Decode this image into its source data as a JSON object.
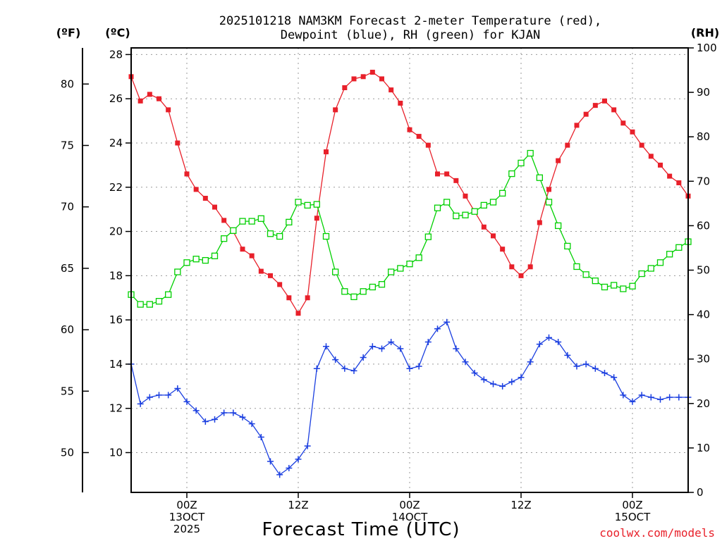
{
  "title_line1": "2025101218 NAM3KM Forecast 2-meter Temperature (red),",
  "title_line2": "Dewpoint (blue), RH (green) for KJAN",
  "units": {
    "f": "(ºF)",
    "c": "(ºC)",
    "rh": "(RH)"
  },
  "credit": "coolwx.com/models",
  "colors": {
    "temp": "#e8202a",
    "dewpoint": "#1b3fe0",
    "rh": "#00d000",
    "grid": "#999999",
    "credit": "#e8202a"
  },
  "chart_data": {
    "type": "line",
    "x": [
      0,
      1,
      2,
      3,
      4,
      5,
      6,
      7,
      8,
      9,
      10,
      11,
      12,
      13,
      14,
      15,
      16,
      17,
      18,
      19,
      20,
      21,
      22,
      23,
      24,
      25,
      26,
      27,
      28,
      29,
      30,
      31,
      32,
      33,
      34,
      35,
      36,
      37,
      38,
      39,
      40,
      41,
      42,
      43,
      44,
      45,
      46,
      47,
      48,
      49,
      50,
      51,
      52,
      53,
      54,
      55,
      56,
      57,
      58,
      59,
      60
    ],
    "xlabel": "Forecast Time (UTC)",
    "xlim": [
      0,
      60
    ],
    "x_ticks": [
      {
        "hour": 6,
        "line1": "00Z",
        "line2": "13OCT",
        "line3": "2025"
      },
      {
        "hour": 18,
        "line1": "12Z",
        "line2": "",
        "line3": ""
      },
      {
        "hour": 30,
        "line1": "00Z",
        "line2": "14OCT",
        "line3": ""
      },
      {
        "hour": 42,
        "line1": "12Z",
        "line2": "",
        "line3": ""
      },
      {
        "hour": 54,
        "line1": "00Z",
        "line2": "15OCT",
        "line3": ""
      }
    ],
    "y_celsius": {
      "ylim": [
        8.2,
        28.3
      ],
      "ticks": [
        10,
        12,
        14,
        16,
        18,
        20,
        22,
        24,
        26,
        28
      ]
    },
    "y_fahrenheit": {
      "ticks": [
        50,
        55,
        60,
        65,
        70,
        75,
        80
      ]
    },
    "y_rh": {
      "ylim": [
        0,
        100
      ],
      "ticks": [
        0,
        10,
        20,
        30,
        40,
        50,
        60,
        70,
        80,
        90,
        100
      ]
    },
    "grid": true,
    "series": [
      {
        "name": "2-meter Temperature",
        "unit": "C",
        "color": "#e8202a",
        "marker": "filled-square",
        "values": [
          27.0,
          25.9,
          26.2,
          26.0,
          25.5,
          24.0,
          22.6,
          21.9,
          21.5,
          21.1,
          20.5,
          20.0,
          19.2,
          18.9,
          18.2,
          18.0,
          17.6,
          17.0,
          16.3,
          17.0,
          20.6,
          23.6,
          25.5,
          26.5,
          26.9,
          27.0,
          27.2,
          26.9,
          26.4,
          25.8,
          24.6,
          24.3,
          23.9,
          22.6,
          22.6,
          22.3,
          21.6,
          20.9,
          20.2,
          19.8,
          19.2,
          18.4,
          18.0,
          18.4,
          20.4,
          21.9,
          23.2,
          23.9,
          24.8,
          25.3,
          25.7,
          25.9,
          25.5,
          24.9,
          24.5,
          23.9,
          23.4,
          23.0,
          22.5,
          22.2,
          21.6
        ]
      },
      {
        "name": "Dewpoint",
        "unit": "C",
        "color": "#1b3fe0",
        "marker": "plus",
        "values": [
          14.0,
          12.2,
          12.5,
          12.6,
          12.6,
          12.9,
          12.3,
          11.9,
          11.4,
          11.5,
          11.8,
          11.8,
          11.6,
          11.3,
          10.7,
          9.6,
          9.0,
          9.3,
          9.7,
          10.3,
          13.8,
          14.8,
          14.2,
          13.8,
          13.7,
          14.3,
          14.8,
          14.7,
          15.0,
          14.7,
          13.8,
          13.9,
          15.0,
          15.6,
          15.9,
          14.7,
          14.1,
          13.6,
          13.3,
          13.1,
          13.0,
          13.2,
          13.4,
          14.1,
          14.9,
          15.2,
          15.0,
          14.4,
          13.9,
          14.0,
          13.8,
          13.6,
          13.4,
          12.6,
          12.3,
          12.6,
          12.5,
          12.4,
          12.5,
          12.5,
          12.5
        ]
      },
      {
        "name": "RH",
        "unit": "%",
        "color": "#00d000",
        "marker": "open-square",
        "axis": "right",
        "values": [
          44.5,
          42.3,
          42.3,
          43.0,
          44.5,
          49.6,
          51.7,
          52.5,
          52.2,
          53.2,
          57.1,
          58.9,
          61.0,
          61.0,
          61.6,
          58.2,
          57.6,
          60.8,
          65.3,
          64.6,
          64.8,
          57.6,
          49.6,
          45.2,
          44.0,
          45.2,
          46.2,
          46.8,
          49.6,
          50.4,
          51.4,
          52.8,
          57.5,
          64.0,
          65.3,
          62.2,
          62.4,
          63.2,
          64.6,
          65.3,
          67.3,
          71.7,
          74.1,
          76.3,
          70.8,
          65.3,
          60.0,
          55.4,
          50.8,
          49.0,
          47.6,
          46.2,
          46.6,
          45.8,
          46.4,
          49.2,
          50.4,
          51.7,
          53.6,
          55.1,
          56.4
        ]
      }
    ]
  }
}
